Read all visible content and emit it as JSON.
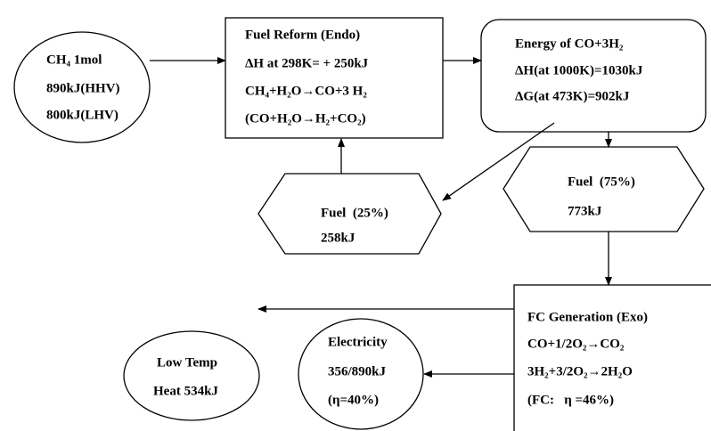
{
  "nodes": [
    {
      "lines": [
        "CH₄ 1mol",
        "890kJ(HHV)",
        "800kJ(LHV)"
      ]
    },
    {
      "lines": [
        "Fuel Reform (Endo)",
        "ΔH at 298K= + 250kJ",
        "CH₄+H₂O→CO+3 H₂",
        "(CO+H₂O→H₂+CO₂)"
      ]
    },
    {
      "lines": [
        "Energy of CO+3H₂",
        "ΔH(at 1000K)=1030kJ",
        "ΔG(at 473K)=902kJ"
      ]
    },
    {
      "lines": [
        "Fuel  (25%)",
        "258kJ"
      ]
    },
    {
      "lines": [
        "Fuel  (75%)",
        "773kJ"
      ]
    },
    {
      "lines": [
        "FC Generation (Exo)",
        "CO+1/2O₂→CO₂",
        "3H₂+3/2O₂→2H₂O",
        "(FC:   η =46%)"
      ]
    },
    {
      "lines": [
        "Electricity",
        "356/890kJ",
        "(η=40%)"
      ]
    },
    {
      "lines": [
        "Low Temp",
        "Heat 534kJ"
      ]
    }
  ]
}
